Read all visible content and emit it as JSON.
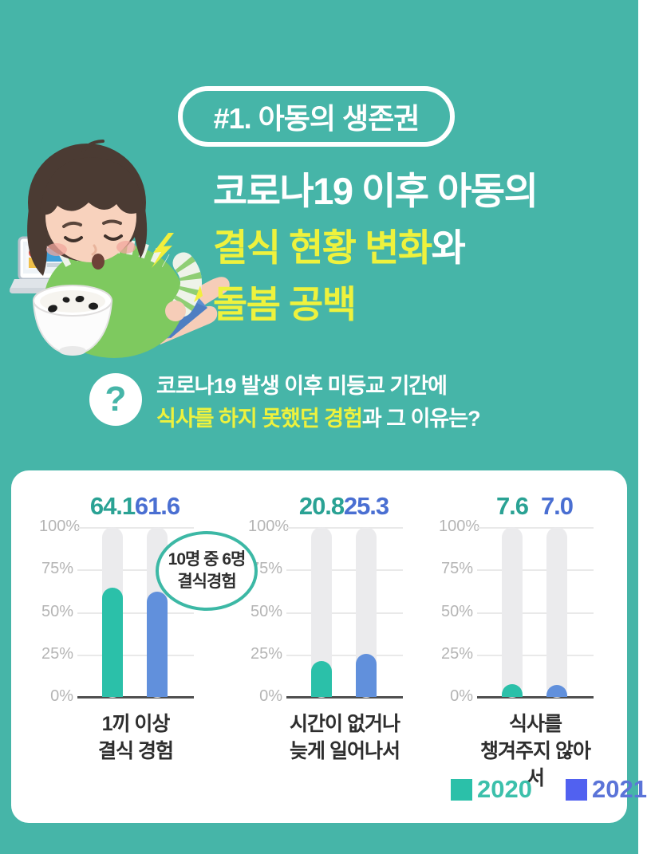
{
  "ui": {
    "colors": {
      "background_teal": "#46b5a8",
      "accent_yellow": "#eef23d",
      "card_white": "#ffffff",
      "series_2020": "#2bc0a9",
      "series_2021": "#6190dc",
      "value_2020": "#2aa294",
      "value_2021": "#4a6fd2",
      "legend_2020_text": "#3cc0ab",
      "legend_2021_text": "#5b74d8",
      "legend_2020_swatch": "#2bc0a9",
      "legend_2021_swatch": "#5161f0",
      "callout_border": "#3cb8a5"
    }
  },
  "header": {
    "badge_label": "#1. 아동의 생존권",
    "title_line1": "코로나19 이후 아동의",
    "title_line2_highlight": "결식 현황 변화",
    "title_line2_rest": "와",
    "title_line3_highlight": "돌봄 공백"
  },
  "question": {
    "mark": "?",
    "line1": "코로나19 발생 이후 미등교 기간에",
    "line2_highlight": "식사를 하지 못했던 경험",
    "line2_rest": "과 그 이유는?"
  },
  "illustration": {
    "icons": [
      "sick-child-icon",
      "laptop-icon",
      "empty-rice-bowl-icon",
      "lightning-icon"
    ]
  },
  "chart_data": {
    "type": "bar",
    "categories": [
      "1끼 이상 결식 경험",
      "시간이 없거나 늦게 일어나서",
      "식사를 챙겨주지 않아서"
    ],
    "series": [
      {
        "name": "2020",
        "values": [
          64.1,
          20.8,
          7.6
        ],
        "color": "#2bc0a9"
      },
      {
        "name": "2021",
        "values": [
          61.6,
          25.3,
          7.0
        ],
        "color": "#6190dc"
      }
    ],
    "ylim": [
      0,
      100
    ],
    "yticks": [
      "0%",
      "25%",
      "50%",
      "75%",
      "100%"
    ],
    "grid": true,
    "legend_position": "bottom-right",
    "annotation": "10명 중 6명 결식경험"
  },
  "charts": {
    "yticks_desc": [
      "100%",
      "75%",
      "50%",
      "25%",
      "0%"
    ],
    "groups": [
      {
        "v2020": "64.1",
        "v2021": "61.6",
        "label_line1": "1끼 이상",
        "label_line2": "결식 경험"
      },
      {
        "v2020": "20.8",
        "v2021": "25.3",
        "label_line1": "시간이 없거나",
        "label_line2": "늦게 일어나서"
      },
      {
        "v2020": "7.6",
        "v2021": "7.0",
        "label_line1": "식사를",
        "label_line2": "챙겨주지 않아서"
      }
    ],
    "callout_line1": "10명 중 6명",
    "callout_line2": "결식경험",
    "legend": [
      {
        "label": "2020"
      },
      {
        "label": "2021"
      }
    ]
  }
}
